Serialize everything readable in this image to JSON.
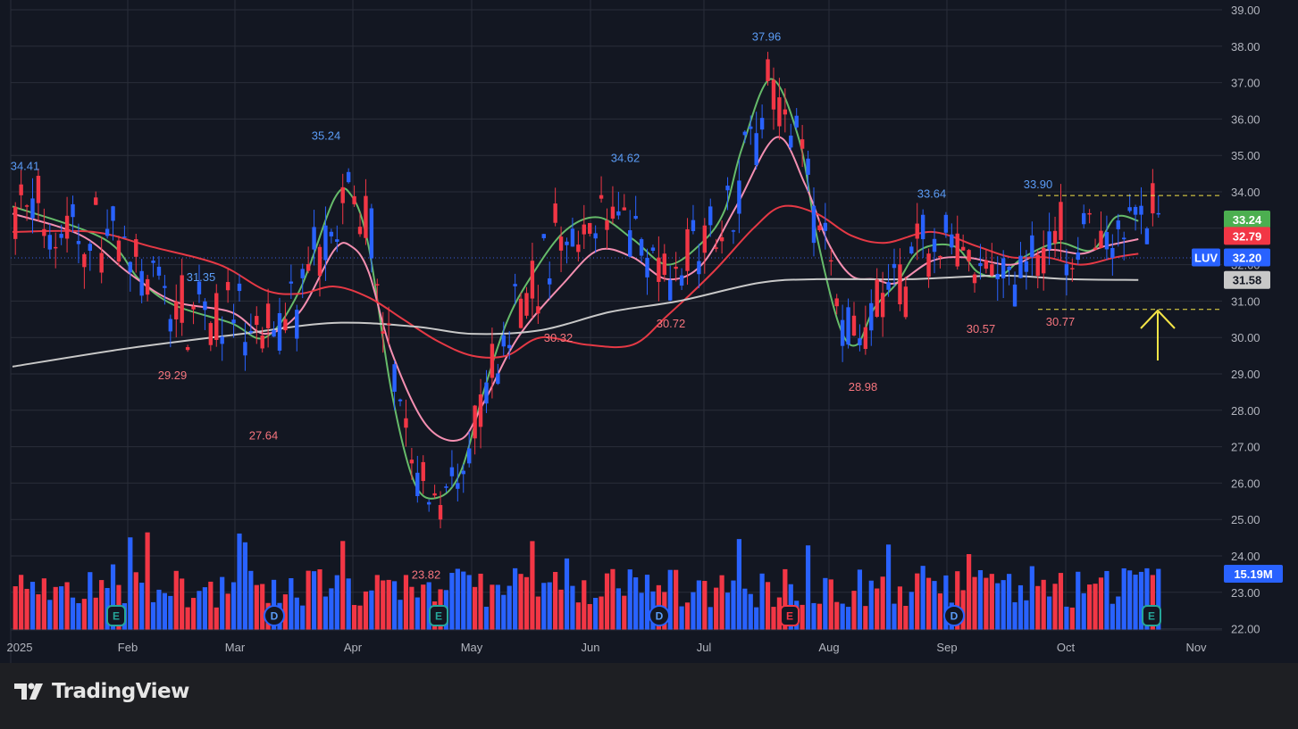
{
  "brand": {
    "name": "TradingView",
    "logo_icon": "tradingview-logo-icon"
  },
  "colors": {
    "background": "#131722",
    "up": "#2962ff",
    "down": "#f23645",
    "grid": "#2a2e39",
    "ema_green": "#66bb6a",
    "ema_pink": "#f48fb1",
    "sma_red": "#e53945",
    "sma_gray": "#c8c8c8",
    "annotation_high": "#5b9cf6",
    "annotation_low": "#f7757e",
    "arrow": "#f5e547"
  },
  "chart_data": {
    "type": "candlestick",
    "symbol": "LUV",
    "x_axis": {
      "labels": [
        "2025",
        "Feb",
        "Mar",
        "Apr",
        "May",
        "Jun",
        "Jul",
        "Aug",
        "Sep",
        "Oct",
        "Nov"
      ]
    },
    "y_axis": {
      "ticks": [
        "39.00",
        "38.00",
        "37.00",
        "36.00",
        "35.00",
        "34.00",
        "33.00",
        "32.00",
        "31.00",
        "30.00",
        "29.00",
        "28.00",
        "27.00",
        "26.00",
        "25.00",
        "24.00",
        "23.00",
        "22.00"
      ],
      "range": [
        22,
        39
      ]
    },
    "price_tags": [
      {
        "label": "33.24",
        "value": 33.24,
        "color": "#4caf50"
      },
      {
        "label": "32.79",
        "value": 32.79,
        "color": "#f23645"
      },
      {
        "label": "32.20",
        "value": 32.2,
        "color": "#2962ff",
        "symbol": "LUV"
      },
      {
        "label": "31.58",
        "value": 31.58,
        "color": "#c8c8c8"
      }
    ],
    "volume_tag": {
      "label": "15.19M"
    },
    "annotations": [
      {
        "text": "34.41",
        "kind": "high",
        "value": 34.41
      },
      {
        "text": "29.29",
        "kind": "low",
        "value": 29.29
      },
      {
        "text": "31.35",
        "kind": "high",
        "value": 31.35
      },
      {
        "text": "27.64",
        "kind": "low",
        "value": 27.64
      },
      {
        "text": "35.24",
        "kind": "high",
        "value": 35.24
      },
      {
        "text": "23.82",
        "kind": "low",
        "value": 23.82
      },
      {
        "text": "30.32",
        "kind": "low",
        "value": 30.32
      },
      {
        "text": "34.62",
        "kind": "high",
        "value": 34.62
      },
      {
        "text": "30.72",
        "kind": "low",
        "value": 30.72
      },
      {
        "text": "37.96",
        "kind": "high",
        "value": 37.96
      },
      {
        "text": "28.98",
        "kind": "low",
        "value": 28.98
      },
      {
        "text": "33.64",
        "kind": "high",
        "value": 33.64
      },
      {
        "text": "30.57",
        "kind": "low",
        "value": 30.57
      },
      {
        "text": "33.90",
        "kind": "high",
        "value": 33.9
      },
      {
        "text": "30.77",
        "kind": "low",
        "value": 30.77
      }
    ],
    "event_badges": [
      {
        "letter": "E",
        "type": "earnings",
        "month": "Jan"
      },
      {
        "letter": "D",
        "type": "dividend",
        "month": "Mar"
      },
      {
        "letter": "E",
        "type": "earnings",
        "month": "Apr"
      },
      {
        "letter": "D",
        "type": "dividend",
        "month": "Jun"
      },
      {
        "letter": "E",
        "type": "earnings",
        "month": "Jul"
      },
      {
        "letter": "D",
        "type": "dividend",
        "month": "Sep"
      },
      {
        "letter": "E",
        "type": "earnings",
        "month": "Oct"
      }
    ],
    "range_lines": [
      {
        "value": 33.9,
        "style": "dashed",
        "color": "#f5e547"
      },
      {
        "value": 30.77,
        "style": "dashed",
        "color": "#f5e547"
      }
    ],
    "moving_averages": [
      {
        "color": "#66bb6a",
        "points": [
          [
            0,
            33.6
          ],
          [
            0.08,
            32.7
          ],
          [
            0.11,
            31.6
          ],
          [
            0.14,
            30.9
          ],
          [
            0.19,
            30.4
          ],
          [
            0.22,
            30.0
          ],
          [
            0.25,
            31.3
          ],
          [
            0.28,
            33.8
          ],
          [
            0.295,
            33.9
          ],
          [
            0.31,
            32.5
          ],
          [
            0.33,
            28.5
          ],
          [
            0.35,
            26.0
          ],
          [
            0.37,
            25.6
          ],
          [
            0.39,
            26.3
          ],
          [
            0.41,
            28.5
          ],
          [
            0.43,
            30.4
          ],
          [
            0.45,
            31.6
          ],
          [
            0.48,
            32.9
          ],
          [
            0.51,
            33.3
          ],
          [
            0.54,
            32.7
          ],
          [
            0.57,
            32.0
          ],
          [
            0.6,
            32.6
          ],
          [
            0.62,
            33.5
          ],
          [
            0.635,
            35.2
          ],
          [
            0.66,
            37.1
          ],
          [
            0.685,
            35.4
          ],
          [
            0.7,
            32.8
          ],
          [
            0.72,
            30.3
          ],
          [
            0.735,
            29.8
          ],
          [
            0.75,
            30.8
          ],
          [
            0.77,
            31.5
          ],
          [
            0.79,
            32.4
          ],
          [
            0.82,
            32.5
          ],
          [
            0.84,
            31.8
          ],
          [
            0.86,
            31.7
          ],
          [
            0.88,
            32.2
          ],
          [
            0.91,
            32.6
          ],
          [
            0.94,
            32.4
          ],
          [
            0.96,
            33.3
          ],
          [
            0.98,
            33.2
          ]
        ]
      },
      {
        "color": "#f48fb1",
        "points": [
          [
            0,
            33.4
          ],
          [
            0.06,
            32.8
          ],
          [
            0.1,
            31.8
          ],
          [
            0.14,
            31.0
          ],
          [
            0.19,
            30.7
          ],
          [
            0.22,
            30.1
          ],
          [
            0.25,
            30.7
          ],
          [
            0.28,
            32.4
          ],
          [
            0.295,
            32.5
          ],
          [
            0.31,
            31.8
          ],
          [
            0.33,
            29.6
          ],
          [
            0.36,
            27.6
          ],
          [
            0.39,
            27.2
          ],
          [
            0.41,
            28.2
          ],
          [
            0.44,
            30.0
          ],
          [
            0.48,
            31.5
          ],
          [
            0.51,
            32.4
          ],
          [
            0.54,
            32.2
          ],
          [
            0.57,
            31.6
          ],
          [
            0.6,
            32.0
          ],
          [
            0.63,
            33.6
          ],
          [
            0.665,
            35.5
          ],
          [
            0.69,
            34.2
          ],
          [
            0.71,
            32.6
          ],
          [
            0.73,
            31.7
          ],
          [
            0.75,
            31.6
          ],
          [
            0.77,
            31.5
          ],
          [
            0.8,
            32.1
          ],
          [
            0.83,
            32.2
          ],
          [
            0.87,
            32.0
          ],
          [
            0.9,
            32.4
          ],
          [
            0.93,
            32.3
          ],
          [
            0.95,
            32.5
          ],
          [
            0.98,
            32.7
          ]
        ]
      },
      {
        "color": "#e53945",
        "points": [
          [
            0,
            32.9
          ],
          [
            0.07,
            32.9
          ],
          [
            0.12,
            32.5
          ],
          [
            0.18,
            32.0
          ],
          [
            0.22,
            31.3
          ],
          [
            0.25,
            31.2
          ],
          [
            0.28,
            31.4
          ],
          [
            0.31,
            31.1
          ],
          [
            0.34,
            30.5
          ],
          [
            0.37,
            29.9
          ],
          [
            0.4,
            29.5
          ],
          [
            0.43,
            29.5
          ],
          [
            0.46,
            30.0
          ],
          [
            0.5,
            29.8
          ],
          [
            0.54,
            29.8
          ],
          [
            0.57,
            30.6
          ],
          [
            0.61,
            31.8
          ],
          [
            0.645,
            33.0
          ],
          [
            0.67,
            33.6
          ],
          [
            0.7,
            33.4
          ],
          [
            0.73,
            32.8
          ],
          [
            0.76,
            32.6
          ],
          [
            0.8,
            32.9
          ],
          [
            0.84,
            32.5
          ],
          [
            0.87,
            32.2
          ],
          [
            0.9,
            32.2
          ],
          [
            0.93,
            32.0
          ],
          [
            0.96,
            32.2
          ],
          [
            0.98,
            32.3
          ]
        ]
      },
      {
        "color": "#c8c8c8",
        "points": [
          [
            0,
            29.2
          ],
          [
            0.1,
            29.7
          ],
          [
            0.2,
            30.1
          ],
          [
            0.28,
            30.4
          ],
          [
            0.35,
            30.3
          ],
          [
            0.4,
            30.1
          ],
          [
            0.46,
            30.2
          ],
          [
            0.52,
            30.7
          ],
          [
            0.58,
            31.0
          ],
          [
            0.65,
            31.5
          ],
          [
            0.7,
            31.6
          ],
          [
            0.78,
            31.6
          ],
          [
            0.86,
            31.7
          ],
          [
            0.92,
            31.6
          ],
          [
            0.98,
            31.58
          ]
        ]
      }
    ],
    "legend": "none",
    "grid": true
  }
}
